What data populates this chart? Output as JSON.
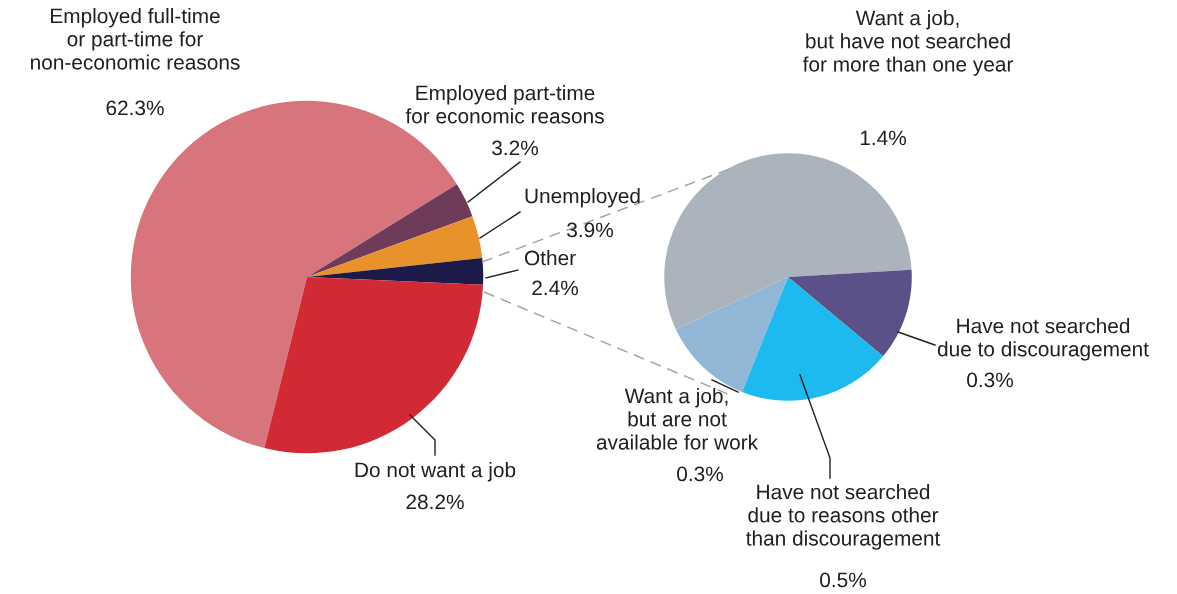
{
  "chart_data": [
    {
      "type": "pie",
      "categories": [
        "Employed full-time\nor part-time for\nnon-economic reasons",
        "Employed part-time\nfor economic reasons",
        "Unemployed",
        "Other",
        "Do not want a job"
      ],
      "values": [
        62.3,
        3.2,
        3.9,
        2.4,
        28.2
      ],
      "value_labels": [
        "62.3%",
        "3.2%",
        "3.9%",
        "2.4%",
        "28.2%"
      ],
      "colors": [
        "#d8747b",
        "#6e3c5a",
        "#e8922c",
        "#1c1a48",
        "#d22a35"
      ]
    },
    {
      "type": "pie",
      "categories": [
        "Want a job,\nbut have not searched\nfor more than one year",
        "Have not searched\ndue to discouragement",
        "Have not searched\ndue to reasons other\nthan discouragement",
        "Want a job,\nbut are not\navailable for work"
      ],
      "values": [
        1.4,
        0.3,
        0.5,
        0.3
      ],
      "value_labels": [
        "1.4%",
        "0.3%",
        "0.5%",
        "0.3%"
      ],
      "colors": [
        "#abb4bd",
        "#5c5088",
        "#1cbaee",
        "#92b6d6"
      ]
    }
  ]
}
